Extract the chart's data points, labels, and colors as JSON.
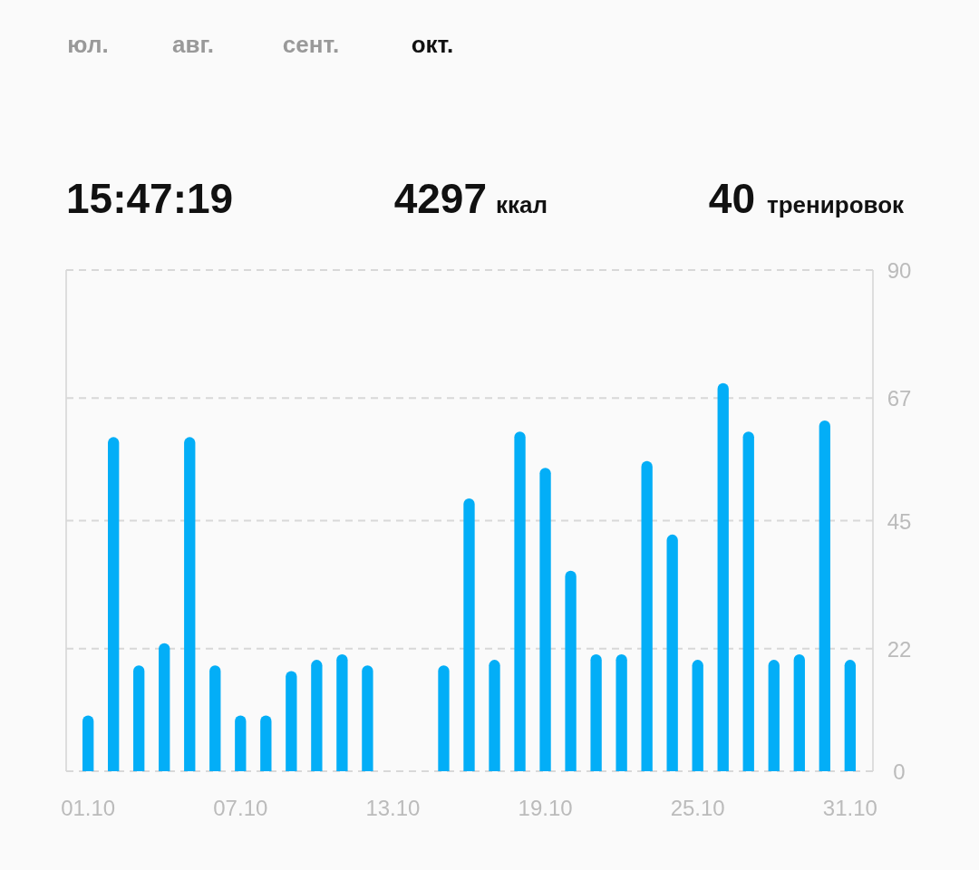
{
  "chart_data": {
    "type": "bar",
    "categories": [
      "01.10",
      null,
      null,
      null,
      null,
      null,
      "07.10",
      null,
      null,
      null,
      null,
      null,
      "13.10",
      null,
      null,
      null,
      null,
      null,
      "19.10",
      null,
      null,
      null,
      null,
      null,
      "25.10",
      null,
      null,
      null,
      null,
      null,
      "31.10"
    ],
    "values": [
      10,
      60,
      19,
      23,
      60,
      19,
      10,
      10,
      18,
      20,
      21,
      19,
      0,
      0,
      19,
      49,
      20,
      61,
      54.5,
      36,
      21,
      21,
      55.7,
      42.5,
      20,
      69.7,
      61,
      20,
      21,
      63,
      20
    ],
    "color": "#03aef7",
    "ylim": [
      0,
      90
    ],
    "yticks": [
      0,
      22,
      45,
      67,
      90
    ],
    "grid": "y",
    "annotations": [
      "юл.",
      "авг.",
      "сент.",
      "окт.",
      "15:47:19",
      "4297",
      "ккал",
      "40",
      "тренировок"
    ]
  }
}
